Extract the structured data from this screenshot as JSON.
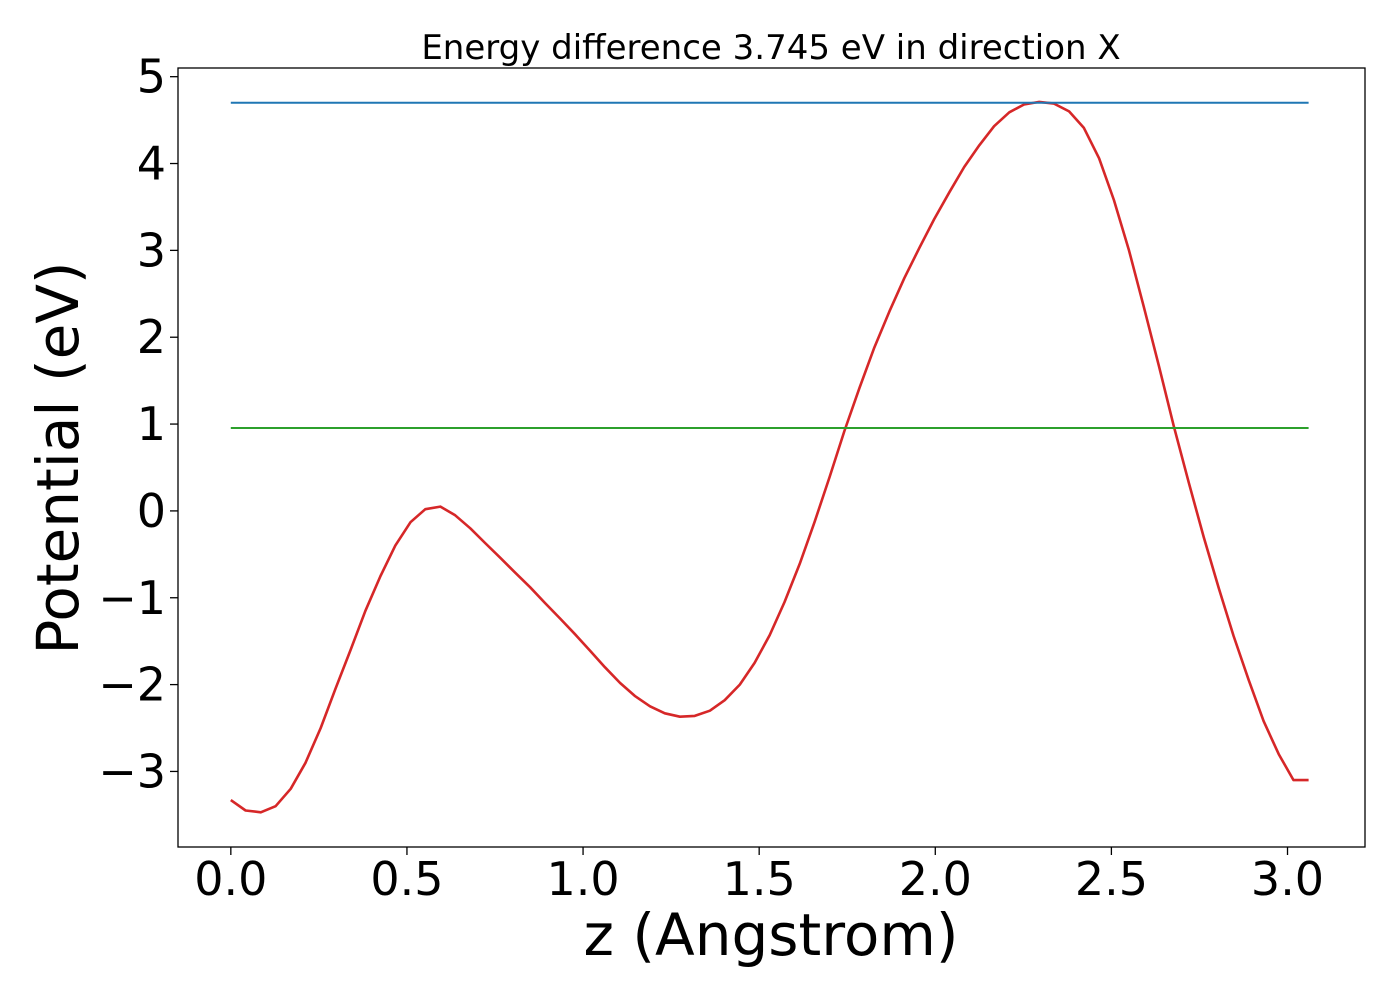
{
  "chart_data": {
    "type": "line",
    "title": "Energy difference 3.745 eV in direction X",
    "xlabel": "z (Angstrom)",
    "ylabel": "Potential (eV)",
    "xlim": [
      -0.15,
      3.22
    ],
    "ylim": [
      -3.87,
      5.1
    ],
    "xticks": [
      0.0,
      0.5,
      1.0,
      1.5,
      2.0,
      2.5,
      3.0
    ],
    "xtick_labels": [
      "0.0",
      "0.5",
      "1.0",
      "1.5",
      "2.0",
      "2.5",
      "3.0"
    ],
    "yticks": [
      -3,
      -2,
      -1,
      0,
      1,
      2,
      3,
      4,
      5
    ],
    "ytick_labels": [
      "−3",
      "−2",
      "−1",
      "0",
      "1",
      "2",
      "3",
      "4",
      "5"
    ],
    "grid": false,
    "series": [
      {
        "color": "#d62728",
        "x": [
          0.0,
          0.042,
          0.085,
          0.127,
          0.17,
          0.212,
          0.255,
          0.297,
          0.34,
          0.382,
          0.425,
          0.467,
          0.51,
          0.552,
          0.595,
          0.637,
          0.68,
          0.722,
          0.765,
          0.807,
          0.85,
          0.892,
          0.935,
          0.977,
          1.02,
          1.062,
          1.105,
          1.147,
          1.19,
          1.232,
          1.275,
          1.317,
          1.36,
          1.402,
          1.445,
          1.487,
          1.53,
          1.572,
          1.615,
          1.657,
          1.7,
          1.742,
          1.785,
          1.827,
          1.87,
          1.912,
          1.955,
          1.997,
          2.04,
          2.082,
          2.125,
          2.167,
          2.21,
          2.252,
          2.295,
          2.337,
          2.38,
          2.422,
          2.465,
          2.507,
          2.55,
          2.592,
          2.635,
          2.677,
          2.72,
          2.762,
          2.805,
          2.847,
          2.89,
          2.932,
          2.975,
          3.017,
          3.06
        ],
        "y": [
          -3.33,
          -3.45,
          -3.47,
          -3.4,
          -3.2,
          -2.9,
          -2.5,
          -2.05,
          -1.6,
          -1.15,
          -0.75,
          -0.4,
          -0.13,
          0.02,
          0.05,
          -0.05,
          -0.2,
          -0.37,
          -0.54,
          -0.71,
          -0.88,
          -1.06,
          -1.24,
          -1.42,
          -1.61,
          -1.8,
          -1.98,
          -2.13,
          -2.25,
          -2.33,
          -2.37,
          -2.36,
          -2.3,
          -2.18,
          -2.0,
          -1.75,
          -1.43,
          -1.05,
          -0.61,
          -0.13,
          0.39,
          0.92,
          1.42,
          1.88,
          2.3,
          2.68,
          3.03,
          3.36,
          3.67,
          3.96,
          4.21,
          4.43,
          4.59,
          4.68,
          4.71,
          4.69,
          4.6,
          4.41,
          4.06,
          3.58,
          3.0,
          2.35,
          1.67,
          0.98,
          0.32,
          -0.3,
          -0.89,
          -1.44,
          -1.95,
          -2.42,
          -2.8,
          -3.1,
          -3.1
        ]
      },
      {
        "color": "#1f77b4",
        "x": [
          0.0,
          3.06
        ],
        "y": [
          4.7,
          4.7
        ]
      },
      {
        "color": "#2ca02c",
        "x": [
          0.0,
          3.06
        ],
        "y": [
          0.955,
          0.955
        ]
      }
    ]
  }
}
